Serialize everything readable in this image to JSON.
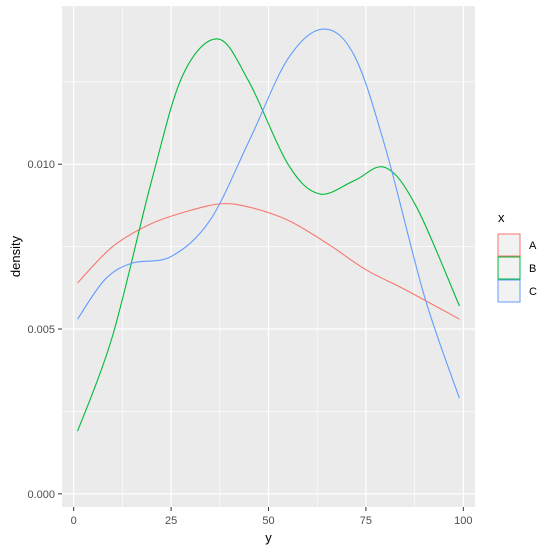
{
  "chart_data": {
    "type": "line",
    "xlabel": "y",
    "ylabel": "density",
    "xlim": [
      -3,
      103
    ],
    "ylim": [
      -0.0004,
      0.0148
    ],
    "x_ticks": [
      0,
      25,
      50,
      75,
      100
    ],
    "x_tick_labels": [
      "0",
      "25",
      "50",
      "75",
      "100"
    ],
    "y_ticks": [
      0.0,
      0.005,
      0.01
    ],
    "y_tick_labels": [
      "0.000",
      "0.005",
      "0.010"
    ],
    "grid": true,
    "legend": {
      "title": "x",
      "position": "right"
    },
    "colors": {
      "A": "#F8766D",
      "B": "#00BA38",
      "C": "#619CFF",
      "panel": "#EBEBEB",
      "grid": "#FFFFFF"
    },
    "series": [
      {
        "name": "A",
        "x": [
          1,
          10,
          20,
          30,
          38,
          45,
          55,
          65,
          75,
          85,
          99
        ],
        "y": [
          0.0064,
          0.0075,
          0.0082,
          0.0086,
          0.0088,
          0.0087,
          0.0083,
          0.0076,
          0.0068,
          0.0062,
          0.0053
        ]
      },
      {
        "name": "B",
        "x": [
          1,
          10,
          20,
          28,
          37,
          45,
          55,
          63,
          72,
          80,
          88,
          99
        ],
        "y": [
          0.0019,
          0.0048,
          0.0095,
          0.0127,
          0.0138,
          0.0125,
          0.01,
          0.0091,
          0.0095,
          0.0099,
          0.0087,
          0.0057
        ]
      },
      {
        "name": "C",
        "x": [
          1,
          8,
          15,
          25,
          35,
          45,
          55,
          64,
          72,
          80,
          90,
          99
        ],
        "y": [
          0.0053,
          0.0065,
          0.007,
          0.0072,
          0.0083,
          0.0107,
          0.0132,
          0.0141,
          0.0133,
          0.0105,
          0.006,
          0.0029
        ]
      }
    ]
  }
}
